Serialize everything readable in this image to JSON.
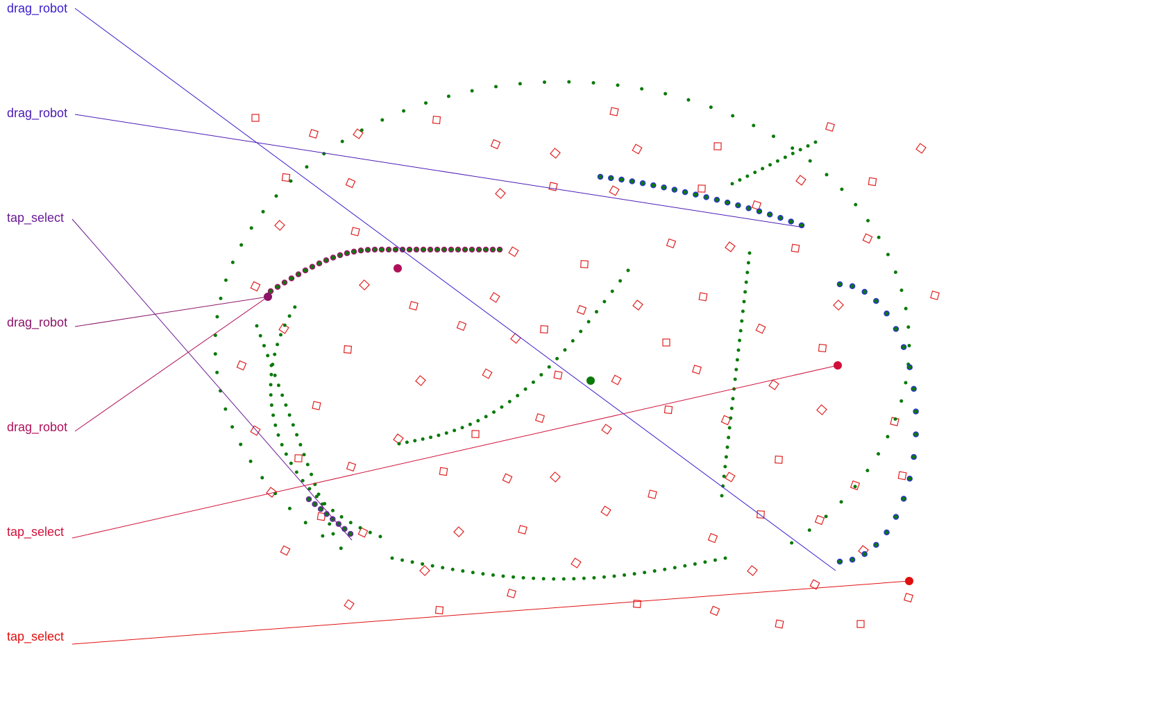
{
  "annotations": [
    {
      "id": "a1",
      "text": "drag_robot",
      "color": "#3a1ccc"
    },
    {
      "id": "a2",
      "text": "drag_robot",
      "color": "#4a1ab4"
    },
    {
      "id": "a3",
      "text": "tap_select",
      "color": "#6a1a96"
    },
    {
      "id": "a4",
      "text": "drag_robot",
      "color": "#8a1468"
    },
    {
      "id": "a5",
      "text": "drag_robot",
      "color": "#b0105a"
    },
    {
      "id": "a6",
      "text": "tap_select",
      "color": "#d0103a"
    },
    {
      "id": "a7",
      "text": "tap_select",
      "color": "#e01010"
    }
  ],
  "colors": {
    "trace": "#0a7a0a",
    "marker": "#e02020",
    "background": "#ffffff"
  }
}
